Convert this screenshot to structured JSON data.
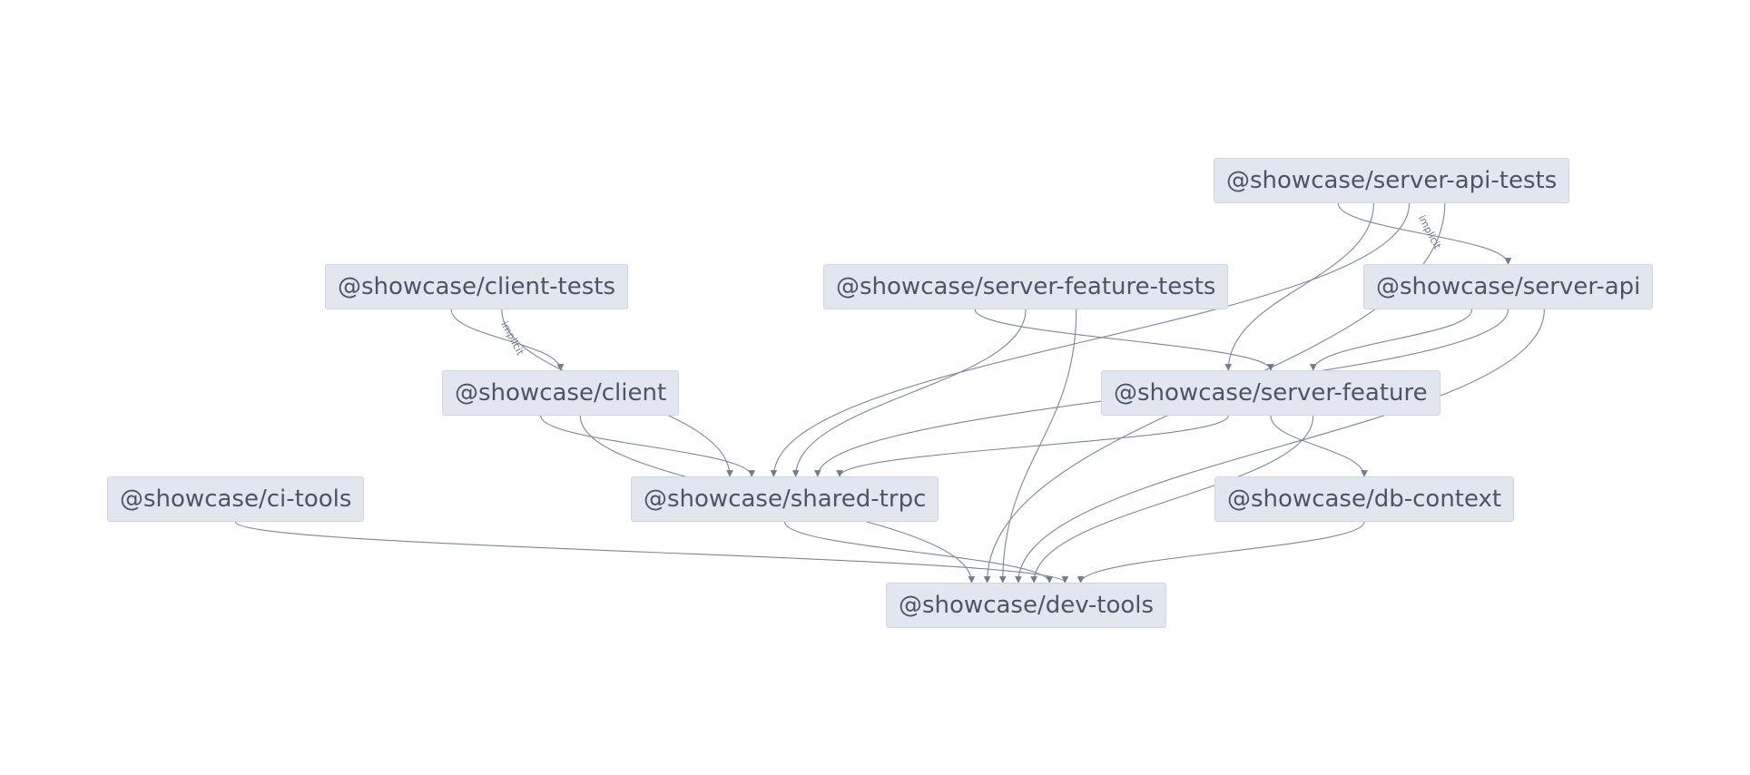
{
  "graph": {
    "nodes": [
      {
        "id": "server-api-tests",
        "label": "@showcase/server-api-tests"
      },
      {
        "id": "client-tests",
        "label": "@showcase/client-tests"
      },
      {
        "id": "server-feature-tests",
        "label": "@showcase/server-feature-tests"
      },
      {
        "id": "server-api",
        "label": "@showcase/server-api"
      },
      {
        "id": "client",
        "label": "@showcase/client"
      },
      {
        "id": "server-feature",
        "label": "@showcase/server-feature"
      },
      {
        "id": "ci-tools",
        "label": "@showcase/ci-tools"
      },
      {
        "id": "shared-trpc",
        "label": "@showcase/shared-trpc"
      },
      {
        "id": "db-context",
        "label": "@showcase/db-context"
      },
      {
        "id": "dev-tools",
        "label": "@showcase/dev-tools"
      }
    ],
    "edges": [
      {
        "from": "client-tests",
        "to": "client",
        "label": "implicit"
      },
      {
        "from": "client-tests",
        "to": "shared-trpc",
        "label": ""
      },
      {
        "from": "client",
        "to": "shared-trpc",
        "label": ""
      },
      {
        "from": "client",
        "to": "dev-tools",
        "label": ""
      },
      {
        "from": "server-api-tests",
        "to": "server-api",
        "label": "implicit"
      },
      {
        "from": "server-api-tests",
        "to": "server-feature",
        "label": ""
      },
      {
        "from": "server-api-tests",
        "to": "shared-trpc",
        "label": ""
      },
      {
        "from": "server-api-tests",
        "to": "dev-tools",
        "label": ""
      },
      {
        "from": "server-feature-tests",
        "to": "server-feature",
        "label": ""
      },
      {
        "from": "server-feature-tests",
        "to": "shared-trpc",
        "label": ""
      },
      {
        "from": "server-feature-tests",
        "to": "dev-tools",
        "label": ""
      },
      {
        "from": "server-api",
        "to": "server-feature",
        "label": ""
      },
      {
        "from": "server-api",
        "to": "shared-trpc",
        "label": ""
      },
      {
        "from": "server-api",
        "to": "dev-tools",
        "label": ""
      },
      {
        "from": "server-feature",
        "to": "shared-trpc",
        "label": ""
      },
      {
        "from": "server-feature",
        "to": "db-context",
        "label": ""
      },
      {
        "from": "server-feature",
        "to": "dev-tools",
        "label": ""
      },
      {
        "from": "shared-trpc",
        "to": "dev-tools",
        "label": ""
      },
      {
        "from": "ci-tools",
        "to": "dev-tools",
        "label": ""
      },
      {
        "from": "db-context",
        "to": "dev-tools",
        "label": ""
      }
    ]
  }
}
